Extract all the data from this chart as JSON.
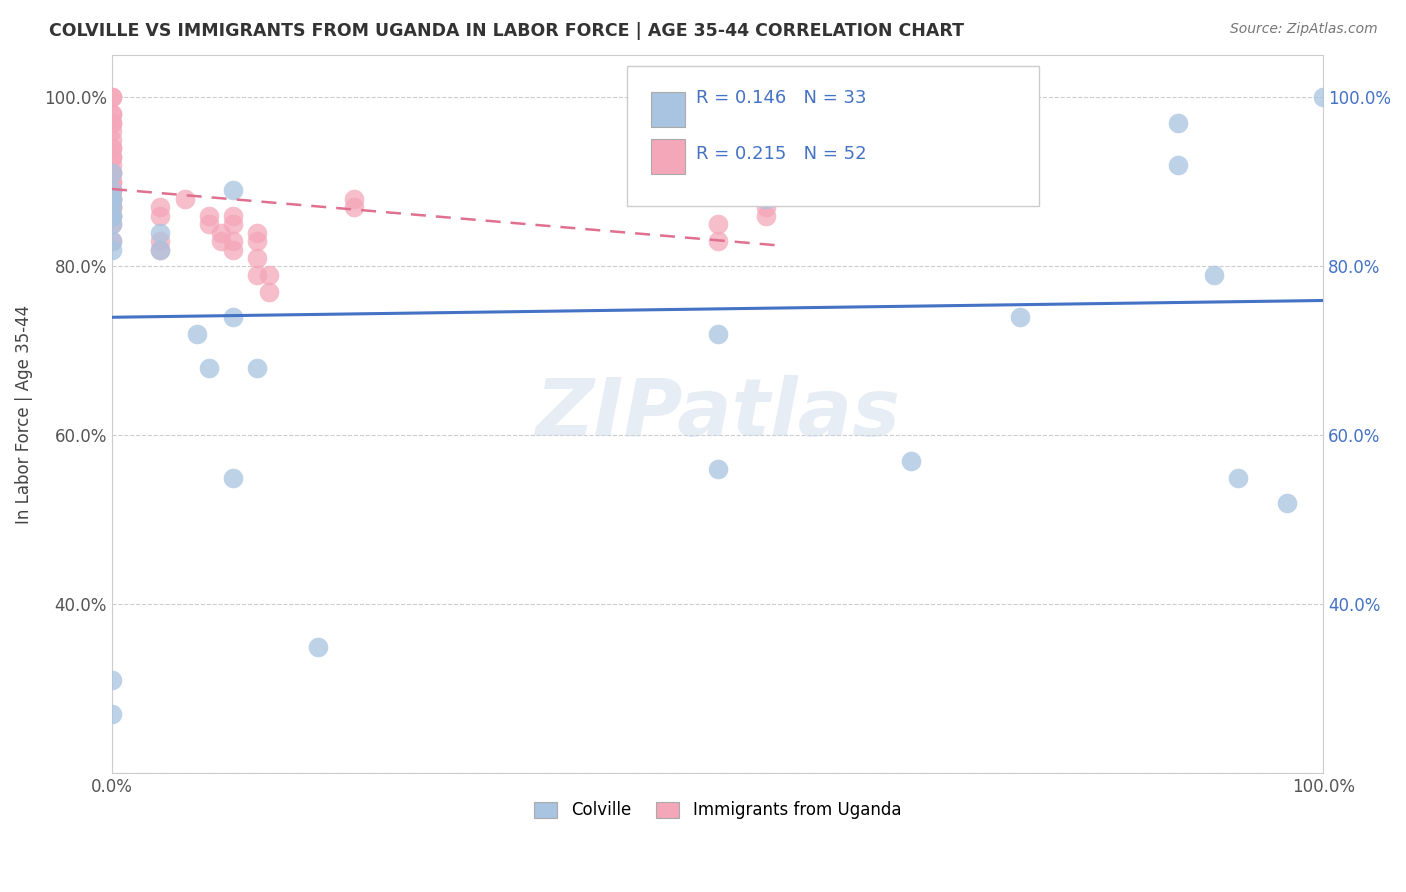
{
  "title": "COLVILLE VS IMMIGRANTS FROM UGANDA IN LABOR FORCE | AGE 35-44 CORRELATION CHART",
  "source": "Source: ZipAtlas.com",
  "ylabel": "In Labor Force | Age 35-44",
  "xlim": [
    0.0,
    1.0
  ],
  "ylim": [
    0.2,
    1.05
  ],
  "x_ticks": [
    0.0,
    0.2,
    0.4,
    0.6,
    0.8,
    1.0
  ],
  "x_tick_labels": [
    "0.0%",
    "",
    "",
    "",
    "",
    "100.0%"
  ],
  "y_ticks": [
    0.2,
    0.4,
    0.6,
    0.8,
    1.0
  ],
  "y_tick_labels_left": [
    "",
    "40.0%",
    "60.0%",
    "80.0%",
    "100.0%"
  ],
  "y_tick_labels_right": [
    "",
    "40.0%",
    "60.0%",
    "80.0%",
    "100.0%"
  ],
  "colville_color": "#a8c4e0",
  "uganda_color": "#f4a7b9",
  "colville_edge_color": "#7aaed0",
  "uganda_edge_color": "#e07090",
  "colville_line_color": "#4472c4",
  "uganda_line_color": "#e07090",
  "annotation_color": "#4472c4",
  "right_axis_color": "#4472c4",
  "colville_R": 0.146,
  "colville_N": 33,
  "uganda_R": 0.215,
  "uganda_N": 52,
  "colville_x": [
    0.0,
    0.0,
    0.0,
    0.0,
    0.0,
    0.0,
    0.0,
    0.0,
    0.0,
    0.0,
    0.04,
    0.04,
    0.07,
    0.08,
    0.1,
    0.1,
    0.1,
    0.12,
    0.17,
    0.5,
    0.5,
    0.54,
    0.54,
    0.66,
    0.75,
    0.88,
    0.88,
    0.91,
    0.93,
    0.97,
    1.0,
    0.0,
    0.0
  ],
  "colville_y": [
    0.82,
    0.83,
    0.85,
    0.86,
    0.86,
    0.87,
    0.88,
    0.88,
    0.89,
    0.91,
    0.82,
    0.84,
    0.72,
    0.68,
    0.55,
    0.74,
    0.89,
    0.68,
    0.35,
    0.56,
    0.72,
    0.88,
    0.89,
    0.57,
    0.74,
    0.92,
    0.97,
    0.79,
    0.55,
    0.52,
    1.0,
    0.27,
    0.31
  ],
  "uganda_x": [
    0.0,
    0.0,
    0.0,
    0.0,
    0.0,
    0.0,
    0.0,
    0.0,
    0.0,
    0.0,
    0.0,
    0.0,
    0.0,
    0.0,
    0.0,
    0.0,
    0.0,
    0.0,
    0.0,
    0.0,
    0.0,
    0.0,
    0.0,
    0.0,
    0.0,
    0.0,
    0.04,
    0.04,
    0.04,
    0.04,
    0.06,
    0.08,
    0.08,
    0.09,
    0.09,
    0.1,
    0.1,
    0.1,
    0.1,
    0.12,
    0.12,
    0.12,
    0.12,
    0.13,
    0.13,
    0.2,
    0.2,
    0.5,
    0.5,
    0.54,
    0.54,
    0.54
  ],
  "uganda_y": [
    0.83,
    0.85,
    0.86,
    0.87,
    0.87,
    0.88,
    0.88,
    0.89,
    0.89,
    0.9,
    0.9,
    0.91,
    0.91,
    0.92,
    0.93,
    0.93,
    0.94,
    0.94,
    0.95,
    0.96,
    0.97,
    0.97,
    0.98,
    0.98,
    1.0,
    1.0,
    0.82,
    0.83,
    0.86,
    0.87,
    0.88,
    0.85,
    0.86,
    0.83,
    0.84,
    0.82,
    0.83,
    0.85,
    0.86,
    0.79,
    0.81,
    0.83,
    0.84,
    0.77,
    0.79,
    0.87,
    0.88,
    0.83,
    0.85,
    0.86,
    0.87,
    0.89
  ]
}
